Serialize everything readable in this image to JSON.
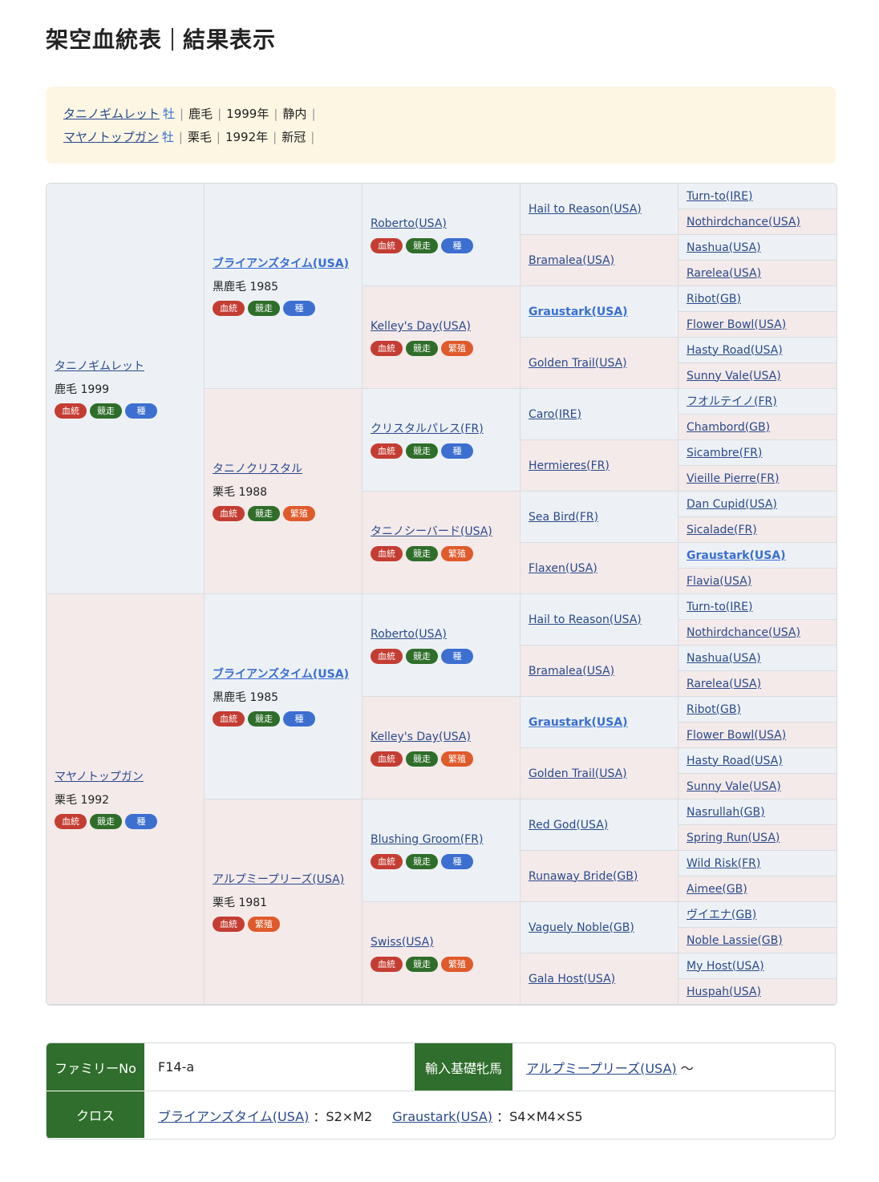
{
  "title": "架空血統表",
  "subtitle": "結果表示",
  "parents": [
    {
      "name": "タニノギムレット",
      "sex": "牡",
      "color": "鹿毛",
      "year": "1999年",
      "region": "静内"
    },
    {
      "name": "マヤノトップガン",
      "sex": "牡",
      "color": "栗毛",
      "year": "1992年",
      "region": "新冠"
    }
  ],
  "badge_labels": {
    "blood": "血統",
    "race": "競走",
    "stud": "種",
    "mare": "繁殖"
  },
  "colors": {
    "sire_bg": "#edf1f5",
    "dam_bg": "#f4eaea",
    "blood": "#c43d33",
    "race": "#2f6e2a",
    "stud": "#3d6fd1",
    "mare": "#e05a2b",
    "header": "#2f6e2c"
  },
  "pedigree": [
    [
      {
        "name": "タニノギムレット",
        "info": "鹿毛 1999",
        "badges": [
          "blood",
          "race",
          "stud"
        ]
      },
      {
        "name": "マヤノトップガン",
        "info": "栗毛 1992",
        "badges": [
          "blood",
          "race",
          "stud"
        ]
      }
    ],
    [
      {
        "name": "ブライアンズタイム(USA)",
        "info": "黒鹿毛 1985",
        "badges": [
          "blood",
          "race",
          "stud"
        ],
        "hl": true
      },
      {
        "name": "タニノクリスタル",
        "info": "栗毛 1988",
        "badges": [
          "blood",
          "race",
          "mare"
        ]
      },
      {
        "name": "ブライアンズタイム(USA)",
        "info": "黒鹿毛 1985",
        "badges": [
          "blood",
          "race",
          "stud"
        ],
        "hl": true
      },
      {
        "name": "アルプミープリーズ(USA)",
        "info": "栗毛 1981",
        "badges": [
          "blood",
          "mare"
        ]
      }
    ],
    [
      {
        "name": "Roberto(USA)",
        "badges": [
          "blood",
          "race",
          "stud"
        ]
      },
      {
        "name": "Kelley's Day(USA)",
        "badges": [
          "blood",
          "race",
          "mare"
        ]
      },
      {
        "name": "クリスタルパレス(FR)",
        "badges": [
          "blood",
          "race",
          "stud"
        ]
      },
      {
        "name": "タニノシーバード(USA)",
        "badges": [
          "blood",
          "race",
          "mare"
        ]
      },
      {
        "name": "Roberto(USA)",
        "badges": [
          "blood",
          "race",
          "stud"
        ]
      },
      {
        "name": "Kelley's Day(USA)",
        "badges": [
          "blood",
          "race",
          "mare"
        ]
      },
      {
        "name": "Blushing Groom(FR)",
        "badges": [
          "blood",
          "race",
          "stud"
        ]
      },
      {
        "name": "Swiss(USA)",
        "badges": [
          "blood",
          "race",
          "mare"
        ]
      }
    ],
    [
      {
        "name": "Hail to Reason(USA)"
      },
      {
        "name": "Bramalea(USA)"
      },
      {
        "name": "Graustark(USA)",
        "hl": true
      },
      {
        "name": "Golden Trail(USA)"
      },
      {
        "name": "Caro(IRE)"
      },
      {
        "name": "Hermieres(FR)"
      },
      {
        "name": "Sea Bird(FR)"
      },
      {
        "name": "Flaxen(USA)"
      },
      {
        "name": "Hail to Reason(USA)"
      },
      {
        "name": "Bramalea(USA)"
      },
      {
        "name": "Graustark(USA)",
        "hl": true
      },
      {
        "name": "Golden Trail(USA)"
      },
      {
        "name": "Red God(USA)"
      },
      {
        "name": "Runaway Bride(GB)"
      },
      {
        "name": "Vaguely Noble(GB)"
      },
      {
        "name": "Gala Host(USA)"
      }
    ],
    [
      {
        "name": "Turn-to(IRE)"
      },
      {
        "name": "Nothirdchance(USA)"
      },
      {
        "name": "Nashua(USA)"
      },
      {
        "name": "Rarelea(USA)"
      },
      {
        "name": "Ribot(GB)"
      },
      {
        "name": "Flower Bowl(USA)"
      },
      {
        "name": "Hasty Road(USA)"
      },
      {
        "name": "Sunny Vale(USA)"
      },
      {
        "name": "フオルテイノ(FR)"
      },
      {
        "name": "Chambord(GB)"
      },
      {
        "name": "Sicambre(FR)"
      },
      {
        "name": "Vieille Pierre(FR)"
      },
      {
        "name": "Dan Cupid(USA)"
      },
      {
        "name": "Sicalade(FR)"
      },
      {
        "name": "Graustark(USA)",
        "hl": true
      },
      {
        "name": "Flavia(USA)"
      },
      {
        "name": "Turn-to(IRE)"
      },
      {
        "name": "Nothirdchance(USA)"
      },
      {
        "name": "Nashua(USA)"
      },
      {
        "name": "Rarelea(USA)"
      },
      {
        "name": "Ribot(GB)"
      },
      {
        "name": "Flower Bowl(USA)"
      },
      {
        "name": "Hasty Road(USA)"
      },
      {
        "name": "Sunny Vale(USA)"
      },
      {
        "name": "Nasrullah(GB)"
      },
      {
        "name": "Spring Run(USA)"
      },
      {
        "name": "Wild Risk(FR)"
      },
      {
        "name": "Aimee(GB)"
      },
      {
        "name": "ヴイエナ(GB)"
      },
      {
        "name": "Noble Lassie(GB)"
      },
      {
        "name": "My Host(USA)"
      },
      {
        "name": "Huspah(USA)"
      }
    ]
  ],
  "summary": {
    "family_label": "ファミリーNo",
    "family_value": "F14-a",
    "import_label": "輸入基礎牝馬",
    "import_value": "アルプミープリーズ(USA)",
    "import_suffix": "〜",
    "cross_label": "クロス",
    "crosses": [
      {
        "name": "ブライアンズタイム(USA)",
        "pattern": "：S2×M2"
      },
      {
        "name": "Graustark(USA)",
        "pattern": "：S4×M4×S5"
      }
    ]
  }
}
